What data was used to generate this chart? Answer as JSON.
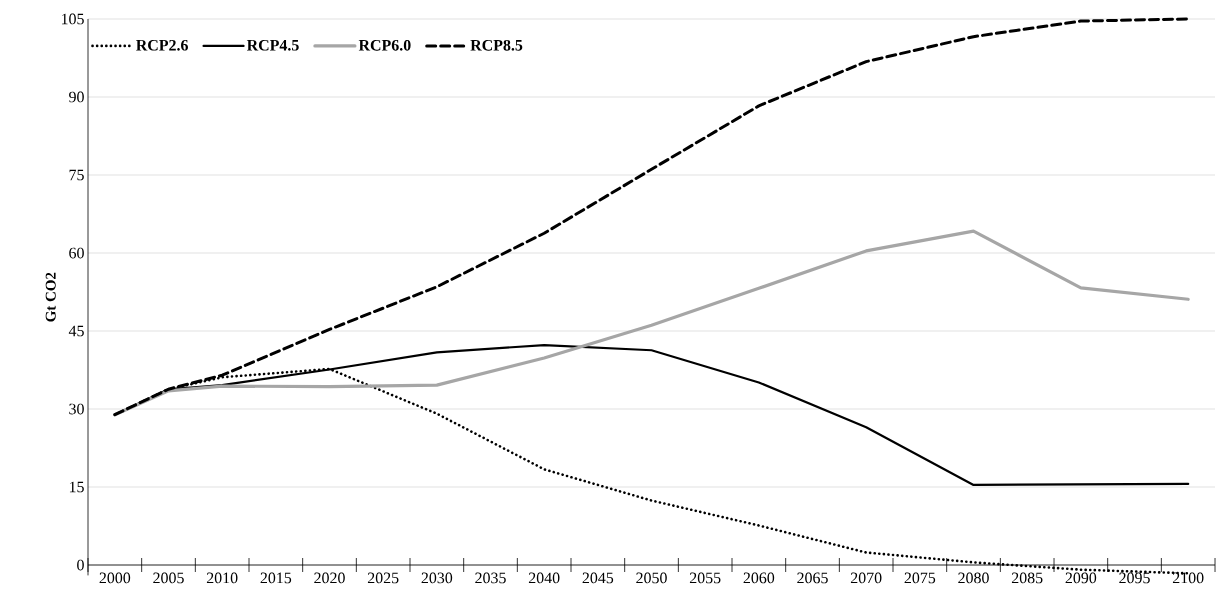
{
  "chart_data": {
    "type": "line",
    "ylabel": "Gt CO2",
    "x": [
      2000,
      2005,
      2010,
      2020,
      2030,
      2040,
      2050,
      2060,
      2070,
      2080,
      2090,
      2100
    ],
    "series": [
      {
        "name": "RCP2.6",
        "color": "#000000",
        "line_style": "dotted",
        "values": [
          28.9,
          33.8,
          36.1,
          37.7,
          29.1,
          18.4,
          12.4,
          7.6,
          2.4,
          0.5,
          -0.9,
          -1.6
        ]
      },
      {
        "name": "RCP4.5",
        "color": "#000000",
        "line_style": "solid",
        "values": [
          28.9,
          33.8,
          34.6,
          37.6,
          40.9,
          42.3,
          41.3,
          35.1,
          26.5,
          15.4,
          15.5,
          15.6
        ]
      },
      {
        "name": "RCP6.0",
        "color": "#a6a6a6",
        "line_style": "solid",
        "values": [
          28.9,
          33.5,
          34.4,
          34.3,
          34.6,
          39.8,
          46.1,
          53.2,
          60.4,
          64.2,
          53.3,
          51.1
        ]
      },
      {
        "name": "RCP8.5",
        "color": "#000000",
        "line_style": "dashed",
        "values": [
          28.9,
          33.8,
          36.5,
          45.3,
          53.5,
          63.8,
          76.1,
          88.3,
          96.8,
          101.6,
          104.6,
          105
        ]
      }
    ],
    "xlim": [
      1997.5,
      2102.5
    ],
    "xticks": [
      2000,
      2005,
      2010,
      2015,
      2020,
      2025,
      2030,
      2035,
      2040,
      2045,
      2050,
      2055,
      2060,
      2065,
      2070,
      2075,
      2080,
      2085,
      2090,
      2095,
      2100,
      {
        "value": 1997.5,
        "label": null
      },
      {
        "value": 2002.5,
        "label": null
      },
      {
        "value": 2007.5,
        "label": null
      },
      {
        "value": 2012.5,
        "label": null
      },
      {
        "value": 2017.5,
        "label": null
      },
      {
        "value": 2022.5,
        "label": null
      },
      {
        "value": 2027.5,
        "label": null
      },
      {
        "value": 2032.5,
        "label": null
      },
      {
        "value": 2037.5,
        "label": null
      },
      {
        "value": 2042.5,
        "label": null
      },
      {
        "value": 2047.5,
        "label": null
      },
      {
        "value": 2052.5,
        "label": null
      },
      {
        "value": 2057.5,
        "label": null
      },
      {
        "value": 2062.5,
        "label": null
      },
      {
        "value": 2067.5,
        "label": null
      },
      {
        "value": 2072.5,
        "label": null
      },
      {
        "value": 2077.5,
        "label": null
      },
      {
        "value": 2082.5,
        "label": null
      },
      {
        "value": 2087.5,
        "label": null
      },
      {
        "value": 2092.5,
        "label": null
      },
      {
        "value": 2097.5,
        "label": null
      },
      {
        "value": 2102.5,
        "label": null
      }
    ],
    "ylim": [
      -2,
      105
    ],
    "yticks": [
      0,
      15,
      30,
      45,
      60,
      75,
      90,
      105
    ],
    "grid": "y",
    "legend": "top left",
    "marker": "none"
  }
}
